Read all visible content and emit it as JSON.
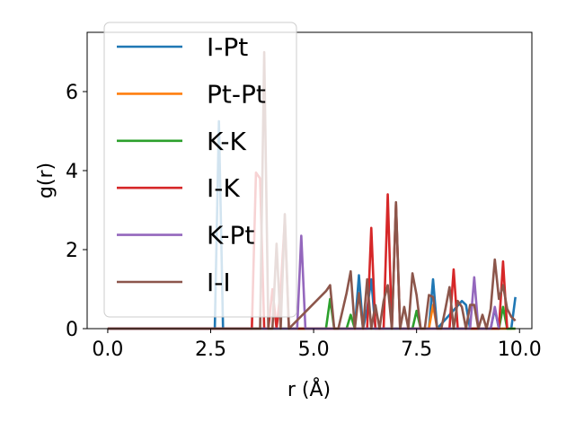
{
  "chart_data": {
    "type": "line",
    "title": "",
    "xlabel": "r (Å)",
    "ylabel": "g(r)",
    "xlim": [
      -0.5,
      10.3
    ],
    "ylim": [
      0,
      7.5
    ],
    "xticks": [
      0.0,
      2.5,
      5.0,
      7.5,
      10.0
    ],
    "xtick_labels": [
      "0.0",
      "2.5",
      "5.0",
      "7.5",
      "10.0"
    ],
    "yticks": [
      0,
      2,
      4,
      6
    ],
    "ytick_labels": [
      "0",
      "2",
      "4",
      "6"
    ],
    "grid": false,
    "legend_position": "top-left",
    "series": [
      {
        "name": "I-Pt",
        "color": "#1f77b4",
        "x": [
          0,
          2.6,
          2.7,
          2.8,
          6.0,
          6.1,
          6.2,
          6.3,
          6.4,
          6.5,
          7.8,
          7.9,
          8.0,
          8.6,
          8.7,
          8.8,
          9.3,
          9.4,
          9.5,
          9.8,
          9.9
        ],
        "y": [
          0,
          0,
          5.25,
          0,
          0,
          1.35,
          0,
          0.5,
          1.25,
          0,
          0,
          1.25,
          0,
          0.7,
          0.6,
          0,
          0,
          0.5,
          0,
          0,
          0.8
        ]
      },
      {
        "name": "Pt-Pt",
        "color": "#ff7f0e",
        "x": [
          0,
          7.8,
          7.9,
          8.0,
          9.9
        ],
        "y": [
          0,
          0,
          0.6,
          0,
          0
        ]
      },
      {
        "name": "K-K",
        "color": "#2ca02c",
        "x": [
          0,
          5.3,
          5.4,
          5.5,
          5.8,
          5.9,
          6.0,
          7.4,
          7.5,
          7.6,
          9.5,
          9.6,
          9.7,
          9.9
        ],
        "y": [
          0,
          0,
          0.75,
          0,
          0,
          0.35,
          0,
          0,
          0.45,
          0,
          0,
          0.55,
          0,
          0
        ]
      },
      {
        "name": "I-K",
        "color": "#d62728",
        "x": [
          0,
          3.5,
          3.6,
          3.7,
          3.8,
          3.9,
          4.0,
          4.1,
          4.2,
          4.3,
          4.4,
          6.3,
          6.4,
          6.5,
          6.7,
          6.8,
          6.9,
          7.0,
          7.1,
          8.3,
          8.4,
          8.5,
          9.5,
          9.6,
          9.7
        ],
        "y": [
          0,
          0,
          3.95,
          3.8,
          0,
          0,
          1.0,
          0,
          1.0,
          2.75,
          0,
          0,
          2.55,
          0,
          0,
          3.4,
          0,
          3.15,
          0,
          0,
          1.5,
          0,
          0,
          1.7,
          0
        ]
      },
      {
        "name": "K-Pt",
        "color": "#9467bd",
        "x": [
          0,
          4.6,
          4.7,
          4.8,
          8.8,
          8.9,
          9.0,
          9.3,
          9.4,
          9.5
        ],
        "y": [
          0,
          0,
          2.35,
          0,
          0,
          1.3,
          0,
          0,
          0.55,
          0
        ]
      },
      {
        "name": "I-I",
        "color": "#8c564b",
        "x": [
          0,
          3.7,
          3.8,
          3.9,
          4.0,
          4.1,
          4.2,
          4.3,
          4.4,
          5.3,
          5.4,
          5.5,
          5.6,
          5.8,
          5.9,
          6.0,
          6.1,
          6.2,
          6.3,
          6.4,
          6.5,
          6.6,
          6.7,
          6.8,
          6.9,
          7.0,
          7.1,
          7.2,
          7.3,
          7.4,
          7.5,
          7.6,
          7.7,
          7.8,
          7.9,
          8.0,
          8.1,
          8.2,
          8.3,
          8.4,
          8.5,
          8.6,
          8.7,
          8.8,
          8.9,
          9.0,
          9.1,
          9.2,
          9.3,
          9.4,
          9.5,
          9.6,
          9.7,
          9.8,
          9.9
        ],
        "y": [
          0,
          0,
          7.0,
          0,
          0,
          2.15,
          0,
          2.9,
          0,
          0.95,
          1.1,
          0,
          0,
          0.9,
          1.45,
          0,
          0.9,
          0,
          1.25,
          0,
          0.6,
          0,
          0.7,
          1.1,
          0,
          3.2,
          0,
          0.55,
          0,
          1.4,
          0.85,
          0,
          0,
          0.85,
          0.8,
          0,
          0,
          0.5,
          1.05,
          0,
          0.7,
          0.55,
          0,
          0.6,
          0.6,
          0,
          0.35,
          0,
          0.5,
          1.75,
          0.75,
          1.1,
          0.5,
          0.3,
          0.2
        ]
      }
    ]
  }
}
